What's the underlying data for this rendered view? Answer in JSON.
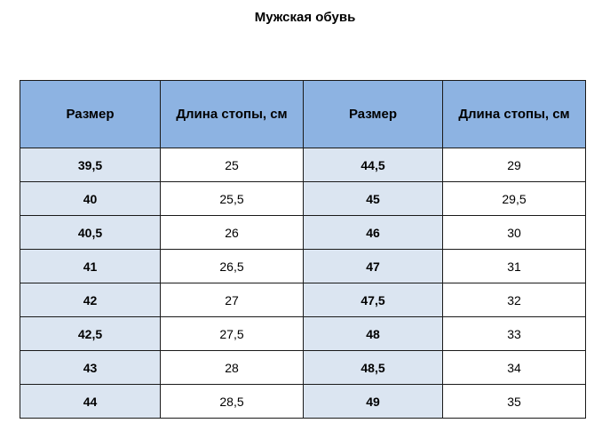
{
  "title": "Мужская обувь",
  "table": {
    "headers": [
      "Размер",
      "Длина стопы, см",
      "Размер",
      "Длина стопы, см"
    ],
    "rows": [
      [
        "39,5",
        "25",
        "44,5",
        "29"
      ],
      [
        "40",
        "25,5",
        "45",
        "29,5"
      ],
      [
        "40,5",
        "26",
        "46",
        "30"
      ],
      [
        "41",
        "26,5",
        "47",
        "31"
      ],
      [
        "42",
        "27",
        "47,5",
        "32"
      ],
      [
        "42,5",
        "27,5",
        "48",
        "33"
      ],
      [
        "43",
        "28",
        "48,5",
        "34"
      ],
      [
        "44",
        "28,5",
        "49",
        "35"
      ]
    ]
  },
  "colors": {
    "header_bg": "#8db3e2",
    "size_col_bg": "#dbe5f1",
    "length_col_bg": "#ffffff",
    "border": "#1a1a1a"
  }
}
